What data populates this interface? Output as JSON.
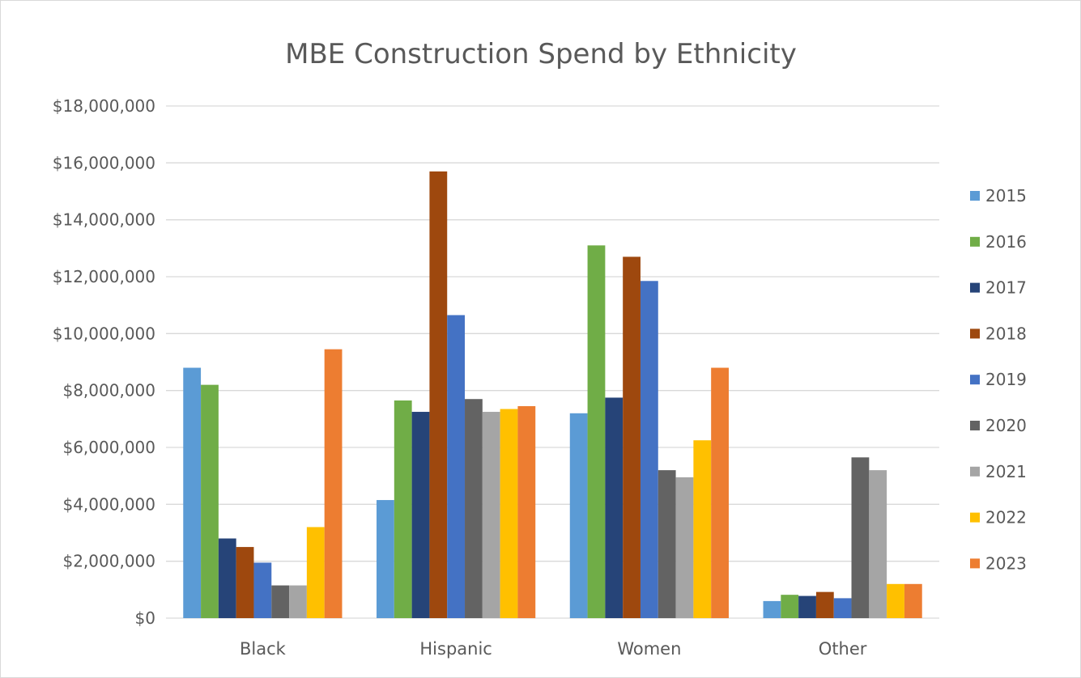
{
  "chart_data": {
    "type": "bar",
    "title": "MBE Construction Spend by Ethnicity",
    "xlabel": "",
    "ylabel": "",
    "categories": [
      "Black",
      "Hispanic",
      "Women",
      "Other"
    ],
    "ylim": [
      0,
      18000000
    ],
    "yticks": [
      0,
      2000000,
      4000000,
      6000000,
      8000000,
      10000000,
      12000000,
      14000000,
      16000000,
      18000000
    ],
    "ytick_labels": [
      "$0",
      "$2,000,000",
      "$4,000,000",
      "$6,000,000",
      "$8,000,000",
      "$10,000,000",
      "$12,000,000",
      "$14,000,000",
      "$16,000,000",
      "$18,000,000"
    ],
    "grid": true,
    "legend_position": "right",
    "series": [
      {
        "name": "2015",
        "color": "#5b9bd5",
        "values": [
          8800000,
          4150000,
          7200000,
          600000
        ]
      },
      {
        "name": "2016",
        "color": "#70ad47",
        "values": [
          8200000,
          7650000,
          13100000,
          820000
        ]
      },
      {
        "name": "2017",
        "color": "#264478",
        "values": [
          2800000,
          7250000,
          7750000,
          780000
        ]
      },
      {
        "name": "2018",
        "color": "#9e480e",
        "values": [
          2500000,
          15700000,
          12700000,
          920000
        ]
      },
      {
        "name": "2019",
        "color": "#4472c4",
        "values": [
          1950000,
          10650000,
          11850000,
          700000
        ]
      },
      {
        "name": "2020",
        "color": "#636363",
        "values": [
          1150000,
          7700000,
          5200000,
          5650000
        ]
      },
      {
        "name": "2021",
        "color": "#a5a5a5",
        "values": [
          1150000,
          7250000,
          4950000,
          5200000
        ]
      },
      {
        "name": "2022",
        "color": "#ffc000",
        "values": [
          3200000,
          7350000,
          6250000,
          1200000
        ]
      },
      {
        "name": "2023",
        "color": "#ed7d31",
        "values": [
          9450000,
          7450000,
          8800000,
          1200000
        ]
      }
    ]
  }
}
